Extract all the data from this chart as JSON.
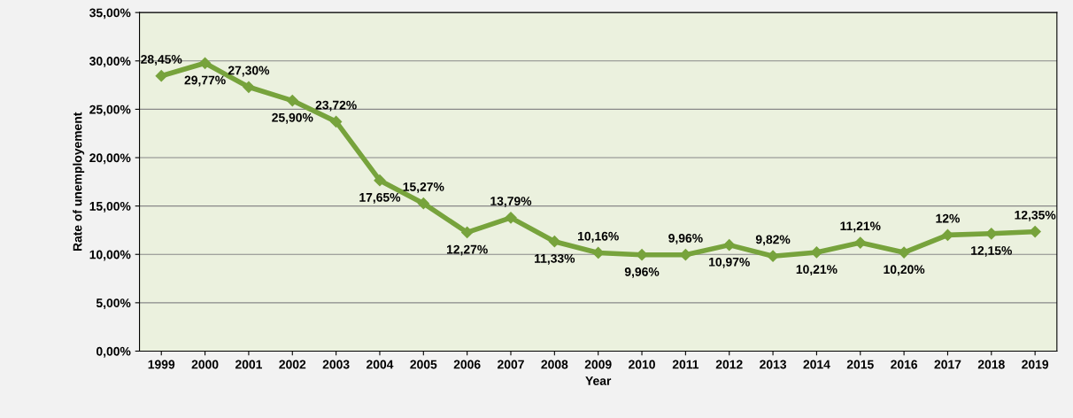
{
  "chart_data": {
    "type": "line",
    "xlabel": "Year",
    "ylabel": "Rate of unemployement",
    "categories": [
      "1999",
      "2000",
      "2001",
      "2002",
      "2003",
      "2004",
      "2005",
      "2006",
      "2007",
      "2008",
      "2009",
      "2010",
      "2011",
      "2012",
      "2013",
      "2014",
      "2015",
      "2016",
      "2017",
      "2018",
      "2019"
    ],
    "series": [
      {
        "color": "#77a33c",
        "values": [
          28.45,
          29.77,
          27.3,
          25.9,
          23.72,
          17.65,
          15.27,
          12.27,
          13.79,
          11.33,
          10.16,
          9.96,
          9.96,
          10.97,
          9.82,
          10.21,
          11.21,
          10.2,
          12,
          12.15,
          12.35
        ],
        "value_labels": [
          "28,45%",
          "29,77%",
          "27,30%",
          "25,90%",
          "23,72%",
          "17,65%",
          "15,27%",
          "12,27%",
          "13,79%",
          "11,33%",
          "10,16%",
          "9,96%",
          "9,96%",
          "10,97%",
          "9,82%",
          "10,21%",
          "11,21%",
          "10,20%",
          "12%",
          "12,15%",
          "12,35%"
        ]
      }
    ],
    "ylim": [
      0,
      35
    ],
    "yticks": [
      {
        "value": 0,
        "label": "0,00%"
      },
      {
        "value": 5,
        "label": "5,00%"
      },
      {
        "value": 10,
        "label": "10,00%"
      },
      {
        "value": 15,
        "label": "15,00%"
      },
      {
        "value": 20,
        "label": "20,00%"
      },
      {
        "value": 25,
        "label": "25,00%"
      },
      {
        "value": 30,
        "label": "30,00%"
      },
      {
        "value": 35,
        "label": "35,00%"
      }
    ],
    "grid": "y",
    "marker": "diamond",
    "line_style": "solid",
    "legend": false
  }
}
